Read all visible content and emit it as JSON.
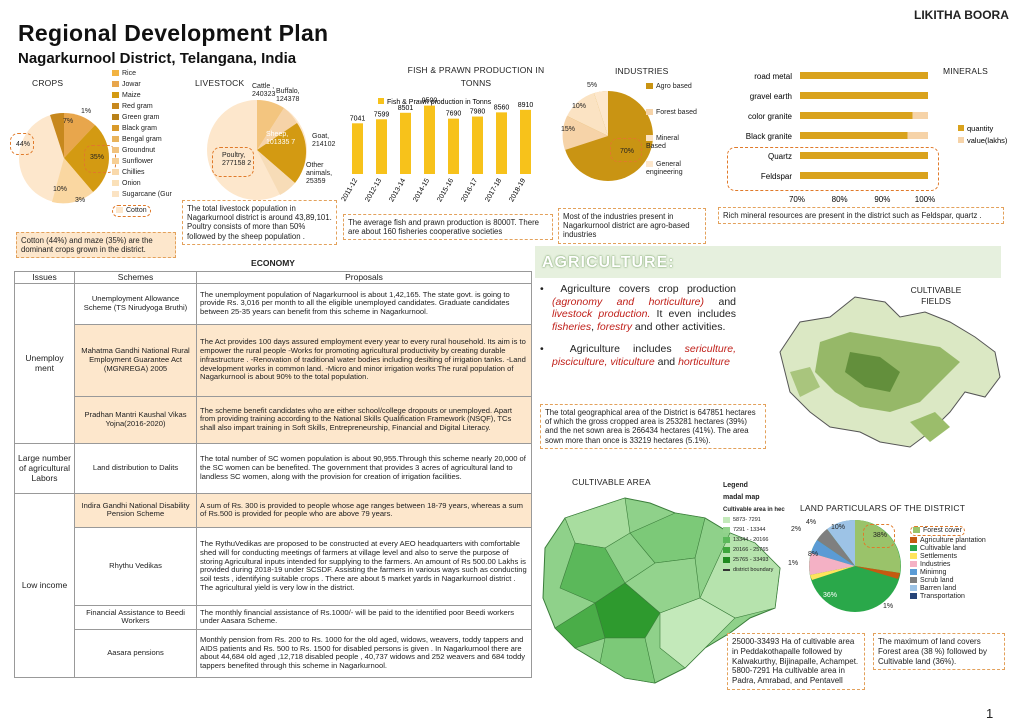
{
  "header": {
    "title": "Regional Development Plan",
    "subtitle": "Nagarkurnool District, Telangana, India",
    "author": "LIKITHA BOORA",
    "page_number": "1"
  },
  "crops": {
    "title": "CROPS",
    "legend": [
      "Rice",
      "Jowar",
      "Maize",
      "Red gram",
      "Green gram",
      "Black gram",
      "Bengal gram",
      "Groundnut",
      "Sunflower",
      "Chillies",
      "Onion",
      "Sugarcane (Gur",
      "Cotton"
    ],
    "labels": {
      "p1": "1%",
      "p7": "7%",
      "p44": "44%",
      "p35": "35%",
      "p10": "10%",
      "p3": "3%"
    },
    "caption": "Cotton (44%) and maze (35%) are the dominant crops grown in the district."
  },
  "livestock": {
    "title": "LIVESTOCK",
    "labels": {
      "cattle": "Cattle , 240323",
      "buffalo": "Buffalo, 124378",
      "sheep": "Sheep, 101335 7",
      "goat": "Goat, 214102",
      "poultry": "Poultry, 277158 2",
      "other": "Other animals, 25359"
    },
    "caption": "The total livestock population in Nagarkurnool district is around 43,89,101. Poultry consists of more than 50% followed by the sheep population ."
  },
  "fish": {
    "title": "FISH & PRAWN PRODUCTION IN TONNS",
    "caption": "The average fish and prawn production is 8000T. There are about 160 fisheries cooperative societies"
  },
  "industries": {
    "title": "INDUSTRIES",
    "labels": {
      "p5": "5%",
      "p10": "10%",
      "p15": "15%",
      "p70": "70%"
    },
    "legend": [
      "Agro based",
      "Forest based",
      "Mineral Based",
      "General engineering"
    ],
    "caption": "Most of the industries present in Nagarkurnool district are agro-based industries"
  },
  "minerals": {
    "title": "MINERALS",
    "caption": "Rich mineral resources are present in the district such as Feldspar, quartz ."
  },
  "economy": {
    "title": "ECONOMY",
    "headers": [
      "Issues",
      "Schemes",
      "Proposals"
    ],
    "issue_unemployment": "Unemploy ment",
    "issue_labors": "Large number of agricultural Labors",
    "issue_low_income": "Low income",
    "rows": [
      {
        "scheme": "Unemployment Allowance Scheme (TS Nirudyoga Bruthi)",
        "proposal": "The unemployment population of Nagarkurnool is about 1,42,165. The state govt. is going to provide Rs. 3,016 per month to all the eligible unemployed candidates. Graduate candidates between 25-35 years can benefit from this scheme in Nagarkurnool."
      },
      {
        "scheme": "Mahatma Gandhi National Rural Employment Guarantee Act (MGNREGA) 2005",
        "proposal": "The Act provides 100 days assured employment every year to every rural household. Its aim is to empower the rural people -Works for promoting agricultural productivity by creating durable infrastructure . -Renovation of traditional water bodies including desilting of irrigation tanks. -Land development works in common land. -Micro and minor irrigation works The rural population of Nagarkurnool is about 90% to the total population."
      },
      {
        "scheme": "Pradhan Mantri Kaushal Vikas Yojna(2016-2020)",
        "proposal": "The scheme benefit candidates who are either school/college dropouts or unemployed. Apart from providing training according to the National Skills Qualification Framework (NSQF), TCs shall also impart training in Soft Skills, Entrepreneurship, Financial and Digital Literacy."
      },
      {
        "scheme": "Land distribution to Dalits",
        "proposal": "The total number of SC women population is about 90,955.Through this scheme nearly 20,000 of the SC women can be benefited. The government that provides 3 acres of agricultural land to landless SC women, along with the provision for creation of irrigation facilities."
      },
      {
        "scheme": "Indira Gandhi National Disability Pension Scheme",
        "proposal": "A sum of Rs. 300 is provided to people whose age ranges between 18-79 years, whereas a sum of Rs.500 is provided for people who are above 79 years."
      },
      {
        "scheme": "Rhythu Vedikas",
        "proposal": "The RythuVedikas are proposed to be constructed at every AEO headquarters with comfortable shed will for conducting meetings of farmers at village level and also to serve the purpose of storing Agricultural inputs intended for supplying to the farmers. An amount of Rs 500.00 Lakhs is provided during 2018-19 under SCSDF. Assisting the farmers in various ways such as conducting soil tests , identifying suitable crops . There are about 5 market yards in Nagarkurnool district . The agricultural yield is very low in the district."
      },
      {
        "scheme": "Financial Assistance to Beedi Workers",
        "proposal": "The monthly financial assistance of Rs.1000/- will be paid to the identified poor Beedi workers under Aasara Scheme."
      },
      {
        "scheme": "Aasara pensions",
        "proposal": "Monthly pension from Rs. 200 to Rs. 1000 for the old aged, widows, weavers, toddy tappers and AIDS patients and Rs. 500 to Rs. 1500 for disabled persons is given . In Nagarkurnool there are about 44,684 old aged ,12,718 disabled people , 40,737 widows and 252 weavers and 684 toddy tappers benefited through this scheme in Nagarkurnool."
      }
    ]
  },
  "agriculture": {
    "banner": "AGRICULTURE:",
    "bullet1_a": "Agriculture covers crop production",
    "bullet1_b": "(agronomy and horticulture)",
    "bullet1_c": "and",
    "bullet1_d": "livestock production.",
    "bullet1_e": "It even includes",
    "bullet1_f": "fisheries",
    "bullet1_g": "forestry",
    "bullet1_h": "and other activities.",
    "bullet2_a": "Agriculture includes",
    "bullet2_b": "sericulture, pisciculture, viticulture",
    "bullet2_c": "and",
    "bullet2_d": "horticulture",
    "area_text": "The total geographical area of the District is 647851 hectares of which the gross cropped area is 253281 hectares (39%) and the net sown area is 266434 hectares (41%). The area sown more than once is 33219 hectares (5.1%).",
    "cultivable_fields": "CULTIVABLE FIELDS"
  },
  "cultivable_area": {
    "title": "CULTIVABLE AREA",
    "legend_title": "Legend",
    "legend_sub": "madal map",
    "legend_head": "Cultivable area in hec",
    "legend_items": [
      "5873- 7291",
      "7291 - 13344",
      "13344 - 20166",
      "20166 - 25765",
      "25765 - 33493",
      "district boundary"
    ],
    "caption": "25000-33493 Ha of cultivable area in Peddakothapalle followed by Kalwakurthy, Bijinapalle, Achampet. 5800-7291 Ha cultivable area in Padra, Amrabad, and Pentavell"
  },
  "land": {
    "title": "LAND PARTICULARS OF THE DISTRICT",
    "labels": {
      "p4": "4%",
      "p2": "2%",
      "p10": "10%",
      "p38": "38%",
      "p8": "8%",
      "p1a": "1%",
      "p36": "36%",
      "p1b": "1%"
    },
    "legend": [
      "Forest cover",
      "Agriculture plantation",
      "Cultivable land",
      "Settlements",
      "Industries",
      "Minimng",
      "Scrub land",
      "Barren land",
      "Transportation"
    ],
    "caption": "The maximum of land covers Forest area (38 %) followed by Cultivable land (36%)."
  },
  "chart_data": [
    {
      "type": "bar",
      "title": "FISH & PRAWN PRODUCTION IN TONNS",
      "categories": [
        "2011-12",
        "2012-13",
        "2013-14",
        "2014-15",
        "2015-16",
        "2016-17",
        "2017-18",
        "2018-19"
      ],
      "series": [
        {
          "name": "Fish & Prawn production in Tonns",
          "values": [
            7041,
            7599,
            8501,
            9500,
            7690,
            7980,
            8560,
            8910
          ],
          "color": "#f7c21b"
        }
      ],
      "grid": false,
      "legend_placement": "top-center"
    },
    {
      "type": "bar",
      "title": "MINERALS",
      "orientation": "horizontal",
      "categories": [
        "road metal",
        "gravel earth",
        "color granite",
        "Black granite",
        "Quartz",
        "Feldspar"
      ],
      "series": [
        {
          "name": "quantity",
          "values": [
            1.0,
            1.0,
            0.88,
            0.84,
            1.0,
            1.0
          ],
          "color": "#d9a21c"
        },
        {
          "name": "value(lakhs)",
          "values": [
            0,
            0,
            0.12,
            0.16,
            0,
            0
          ],
          "color": "#f6d3a8"
        }
      ],
      "xticks": [
        "70%",
        "80%",
        "90%",
        "100%"
      ],
      "stacked": true,
      "legend_placement": "right"
    }
  ]
}
